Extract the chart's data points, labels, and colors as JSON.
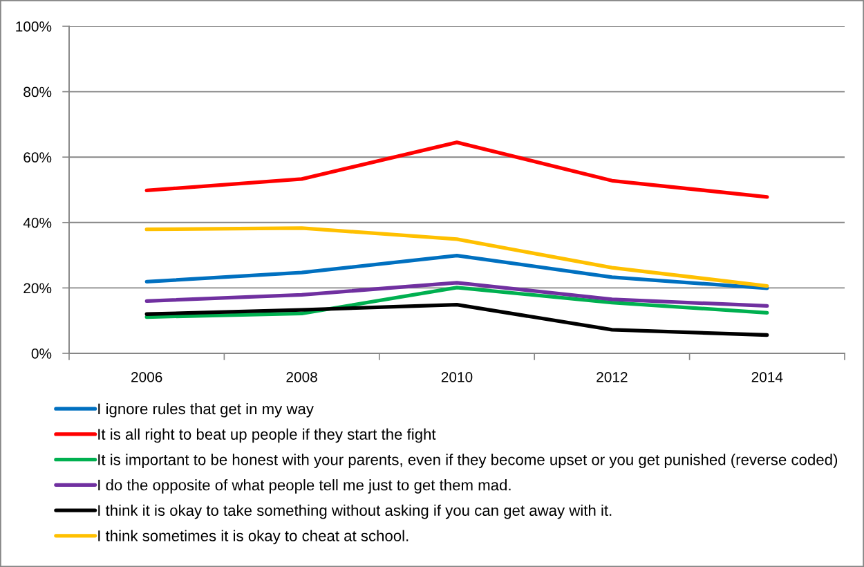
{
  "chart_data": {
    "type": "line",
    "categories": [
      "2006",
      "2008",
      "2010",
      "2012",
      "2014"
    ],
    "ylim": [
      0,
      100
    ],
    "yticks": [
      {
        "value": 0,
        "label": "0%"
      },
      {
        "value": 20,
        "label": "20%"
      },
      {
        "value": 40,
        "label": "40%"
      },
      {
        "value": 60,
        "label": "60%"
      },
      {
        "value": 80,
        "label": "80%"
      },
      {
        "value": 100,
        "label": "100%"
      }
    ],
    "grid": "y",
    "legend": "bottom",
    "line_style": "solid",
    "series": [
      {
        "name": "I ignore rules that get in my way",
        "color": "#0070c0",
        "values": [
          21.9,
          24.7,
          29.9,
          23.3,
          19.9
        ]
      },
      {
        "name": "It is all right to beat up people if they start the fight",
        "color": "#ff0000",
        "values": [
          49.8,
          53.3,
          64.5,
          52.8,
          47.8
        ]
      },
      {
        "name": "It is important to be honest with your parents, even if they become upset or you get punished (reverse coded)",
        "color": "#00b050",
        "values": [
          11.1,
          12.2,
          20.1,
          15.5,
          12.4
        ]
      },
      {
        "name": "I do the opposite of what people tell me just to get them mad.",
        "color": "#7030a0",
        "values": [
          16.0,
          17.9,
          21.6,
          16.5,
          14.5
        ]
      },
      {
        "name": "I think it is okay to take something without asking if you can get away with it.",
        "color": "#000000",
        "values": [
          12.0,
          13.3,
          14.9,
          7.2,
          5.6
        ]
      },
      {
        "name": "I think sometimes it is okay to cheat at school.",
        "color": "#ffc000",
        "values": [
          37.9,
          38.3,
          34.9,
          26.2,
          20.6
        ]
      }
    ]
  }
}
